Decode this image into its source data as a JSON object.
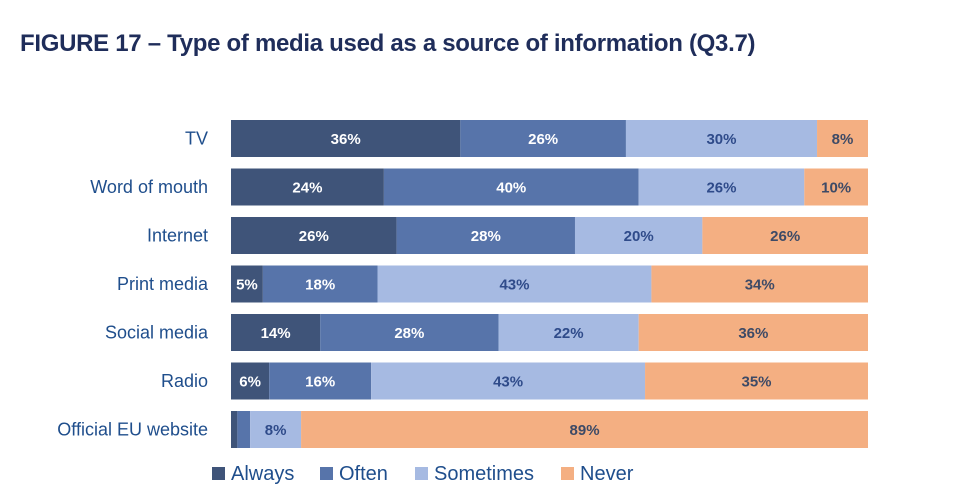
{
  "chart_data": {
    "type": "bar",
    "orientation": "horizontal",
    "stacked": true,
    "title": "FIGURE 17 – Type of media used as a source of information (Q3.7)",
    "xlabel": "",
    "ylabel": "",
    "xlim": [
      0,
      100
    ],
    "grid": false,
    "legend_position": "bottom",
    "categories": [
      "TV",
      "Word of mouth",
      "Internet",
      "Print media",
      "Social media",
      "Radio",
      "Official EU website"
    ],
    "series": [
      {
        "name": "Always",
        "color": "#3f5479",
        "label_color": "#ffffff",
        "values": [
          36,
          24,
          26,
          5,
          14,
          6,
          1
        ],
        "labels": [
          "36%",
          "24%",
          "26%",
          "5%",
          "14%",
          "6%",
          ""
        ]
      },
      {
        "name": "Often",
        "color": "#5774aa",
        "label_color": "#ffffff",
        "values": [
          26,
          40,
          28,
          18,
          28,
          16,
          2
        ],
        "labels": [
          "26%",
          "40%",
          "28%",
          "18%",
          "28%",
          "16%",
          ""
        ]
      },
      {
        "name": "Sometimes",
        "color": "#a6bae2",
        "label_color": "#2f4b8a",
        "values": [
          30,
          26,
          20,
          43,
          22,
          43,
          8
        ],
        "labels": [
          "30%",
          "26%",
          "20%",
          "43%",
          "22%",
          "43%",
          "8%"
        ]
      },
      {
        "name": "Never",
        "color": "#f4af82",
        "label_color": "#3d4a66",
        "values": [
          8,
          10,
          26,
          34,
          36,
          35,
          89
        ],
        "labels": [
          "8%",
          "10%",
          "26%",
          "34%",
          "36%",
          "35%",
          "89%"
        ]
      }
    ]
  }
}
